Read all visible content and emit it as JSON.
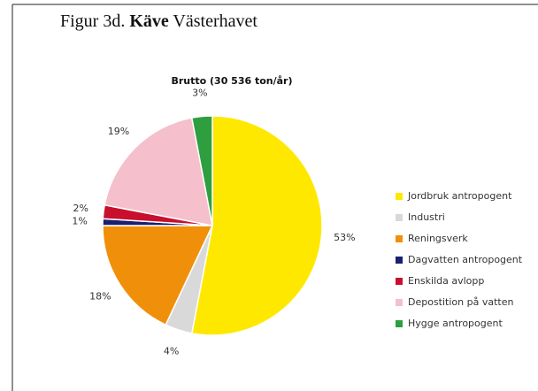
{
  "caption": {
    "prefix": "Figur 3d. ",
    "bold": "Käve",
    "suffix": " Västerhavet"
  },
  "chart_data": {
    "type": "pie",
    "title": "Brutto (30 536 ton/år)",
    "categories": [
      "Jordbruk antropogent",
      "Industri",
      "Reningsverk",
      "Dagvatten antropogent",
      "Enskilda avlopp",
      "Depostition på vatten",
      "Hygge antropogent"
    ],
    "values": [
      53,
      4,
      18,
      1,
      2,
      19,
      3
    ],
    "value_labels": [
      "53%",
      "4%",
      "18%",
      "1%",
      "2%",
      "19%",
      "3%"
    ],
    "colors": [
      "#ffe800",
      "#d9d9d9",
      "#f0900a",
      "#1a1f6e",
      "#c8102e",
      "#f5bfcb",
      "#2e9e3e"
    ],
    "legend": "right"
  }
}
